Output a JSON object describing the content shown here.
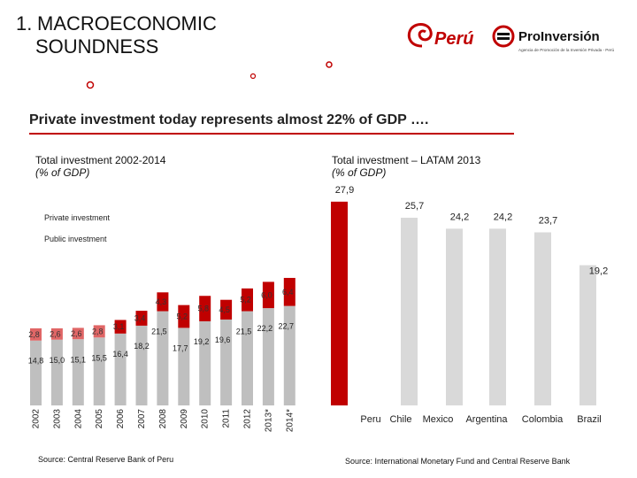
{
  "slide": {
    "title_number": "1.",
    "title_line1": "MACROECONOMIC",
    "title_line2": "SOUNDNESS",
    "subtitle": "Private investment today represents almost 22% of GDP ….",
    "logo_peru": "Perú",
    "logo_proinversion": "ProInversión",
    "logo_proinversion_tagline": "Agencia de Promoción de la Inversión Privada - Perú"
  },
  "left_chart": {
    "title": "Total investment 2002-2014",
    "unit": "(% of GDP)",
    "source": "Source: Central Reserve Bank of Peru"
  },
  "right_chart": {
    "title": "Total investment – LATAM 2013",
    "unit": "(% of GDP)",
    "source": "Source: International Monetary Fund and Central Reserve Bank"
  },
  "colors": {
    "accent_red": "#c00000",
    "private_bar": "#bfbfbf",
    "public_bar": "#c00000",
    "public_bar_light": "#e06666",
    "latam_grey": "#d9d9d9"
  },
  "chart_data": [
    {
      "type": "bar",
      "stacked": true,
      "title": "Total investment 2002-2014",
      "ylabel": "% of GDP",
      "categories": [
        "2002",
        "2003",
        "2004",
        "2005",
        "2006",
        "2007",
        "2008",
        "2009",
        "2010",
        "2011",
        "2012",
        "2013*",
        "2014*"
      ],
      "series": [
        {
          "name": "Private investment",
          "values": [
            14.8,
            15.0,
            15.1,
            15.5,
            16.4,
            18.2,
            21.5,
            17.7,
            19.2,
            19.6,
            21.5,
            22.2,
            22.7
          ],
          "labels": [
            "14,8",
            "15,0",
            "15,1",
            "15,5",
            "16,4",
            "18,2",
            "21,5",
            "17,7",
            "19,2",
            "19,6",
            "21,5",
            "22,2",
            "22,7"
          ]
        },
        {
          "name": "Public investment",
          "values": [
            2.8,
            2.6,
            2.6,
            2.8,
            3.1,
            3.4,
            4.3,
            5.2,
            5.8,
            4.5,
            5.2,
            6.0,
            6.4
          ],
          "labels": [
            "2,8",
            "2,6",
            "2,6",
            "2,8",
            "3,1",
            "3,4",
            "4,3",
            "5,2",
            "5,8",
            "4,5",
            "5,2",
            "6,0",
            "6,4"
          ]
        }
      ],
      "legend": "top-left",
      "grid": false
    },
    {
      "type": "bar",
      "title": "Total investment – LATAM 2013",
      "ylabel": "% of GDP",
      "categories": [
        "Peru",
        "Chile",
        "Mexico",
        "Argentina",
        "Colombia",
        "Brazil"
      ],
      "values": [
        27.9,
        25.7,
        24.2,
        24.2,
        23.7,
        19.2
      ],
      "labels": [
        "27,9",
        "25,7",
        "24,2",
        "24,2",
        "23,7",
        "19,2"
      ],
      "highlight": "Peru",
      "grid": false
    }
  ]
}
